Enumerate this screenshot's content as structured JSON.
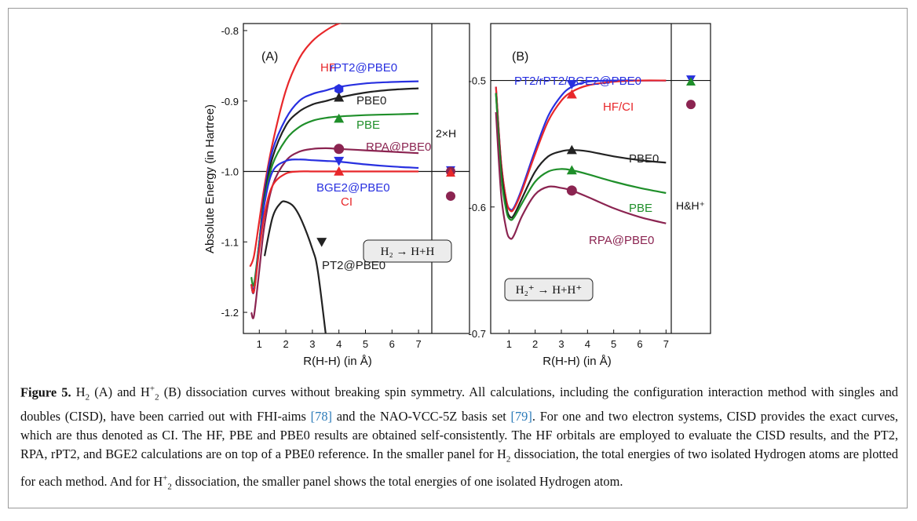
{
  "chart_data": [
    {
      "panel_label": "(A)",
      "type": "line",
      "xlabel": "R(H-H) (in Å)",
      "ylabel": "Absolute Energy (in Hartree)",
      "xlim": [
        0.4,
        7.5
      ],
      "ylim": [
        -1.23,
        -0.79
      ],
      "xticks": [
        "1",
        "2",
        "3",
        "4",
        "5",
        "6",
        "7"
      ],
      "yticks": [
        "-1.2",
        "-1.1",
        "-1.0",
        "-0.9",
        "-0.8"
      ],
      "side_label": "2×H",
      "reaction_label": "H₂ → H+H",
      "reference_line": -1.0,
      "series": [
        {
          "name": "HF",
          "color": "#e8272a",
          "x": [
            0.65,
            0.8,
            1,
            1.2,
            1.5,
            2,
            2.5,
            3,
            3.5,
            4,
            4.5
          ],
          "y": [
            -1.135,
            -1.12,
            -1.07,
            -1.02,
            -0.96,
            -0.885,
            -0.84,
            -0.815,
            -0.8,
            -0.79,
            -0.785
          ],
          "marker_x": null
        },
        {
          "name": "rPT2@PBE0",
          "color": "#2830e0",
          "x": [
            0.7,
            0.8,
            1,
            1.2,
            1.5,
            2,
            2.5,
            3,
            3.5,
            4,
            5,
            6,
            7
          ],
          "y": [
            -1.16,
            -1.165,
            -1.1,
            -1.03,
            -0.97,
            -0.925,
            -0.9,
            -0.89,
            -0.885,
            -0.88,
            -0.875,
            -0.873,
            -0.872
          ],
          "marker_x": 4.0,
          "marker_y": -0.883,
          "marker": "hexagon"
        },
        {
          "name": "PBE0",
          "color": "#222222",
          "x": [
            0.7,
            0.8,
            1,
            1.2,
            1.5,
            2,
            2.5,
            3,
            3.5,
            4,
            5,
            6,
            7
          ],
          "y": [
            -1.16,
            -1.17,
            -1.1,
            -1.035,
            -0.98,
            -0.935,
            -0.915,
            -0.905,
            -0.9,
            -0.895,
            -0.888,
            -0.884,
            -0.882
          ],
          "marker_x": 4.0,
          "marker_y": -0.895,
          "marker": "triangle-up"
        },
        {
          "name": "PBE",
          "color": "#1f8f2a",
          "x": [
            0.7,
            0.8,
            1,
            1.2,
            1.5,
            2,
            2.5,
            3,
            3.5,
            4,
            5,
            6,
            7
          ],
          "y": [
            -1.15,
            -1.16,
            -1.1,
            -1.04,
            -0.99,
            -0.955,
            -0.937,
            -0.928,
            -0.924,
            -0.922,
            -0.92,
            -0.919,
            -0.918
          ],
          "marker_x": 4.0,
          "marker_y": -0.925,
          "marker": "triangle-up"
        },
        {
          "name": "RPA@PBE0",
          "color": "#8b2451",
          "x": [
            0.7,
            0.8,
            1,
            1.2,
            1.5,
            2,
            2.5,
            3,
            3.5,
            4,
            5,
            6,
            7
          ],
          "y": [
            -1.2,
            -1.205,
            -1.14,
            -1.075,
            -1.02,
            -0.985,
            -0.972,
            -0.968,
            -0.967,
            -0.968,
            -0.97,
            -0.972,
            -0.974
          ],
          "marker_x": 4.0,
          "marker_y": -0.968,
          "marker": "circle"
        },
        {
          "name": "BGE2@PBE0",
          "color": "#2830e0",
          "x": [
            0.7,
            0.8,
            1,
            1.2,
            1.5,
            2,
            2.5,
            3,
            3.5,
            4,
            5,
            6,
            7
          ],
          "y": [
            -1.16,
            -1.17,
            -1.105,
            -1.045,
            -1.0,
            -0.985,
            -0.983,
            -0.984,
            -0.985,
            -0.986,
            -0.99,
            -0.993,
            -0.995
          ],
          "marker_x": 4.0,
          "marker_y": -0.985,
          "marker": "triangle-down"
        },
        {
          "name": "CI",
          "color": "#e8272a",
          "x": [
            0.7,
            0.8,
            1,
            1.2,
            1.5,
            2,
            2.5,
            3,
            3.5,
            4,
            5,
            6,
            7
          ],
          "y": [
            -1.16,
            -1.17,
            -1.11,
            -1.06,
            -1.02,
            -1.003,
            -1.0,
            -1.0,
            -1.0,
            -1.0,
            -1.0,
            -1.0,
            -1.0
          ],
          "marker_x": 4.0,
          "marker_y": -1.0,
          "marker": "triangle-up"
        },
        {
          "name": "PT2@PBE0",
          "color": "#222222",
          "x": [
            1.2,
            1.5,
            1.8,
            2.0,
            2.3,
            2.6,
            3.0,
            3.2,
            3.5
          ],
          "y": [
            -1.12,
            -1.065,
            -1.045,
            -1.043,
            -1.05,
            -1.07,
            -1.11,
            -1.14,
            -1.23
          ],
          "marker_x": 3.35,
          "marker_y": -1.1,
          "marker": "triangle-down"
        }
      ],
      "side_markers": [
        {
          "color": "#2830e0",
          "y": -0.998,
          "marker": "triangle-down"
        },
        {
          "color": "#8b2451",
          "y": -1.0,
          "marker": "circle"
        },
        {
          "color": "#e8272a",
          "y": -1.002,
          "marker": "triangle-up"
        },
        {
          "color": "#8b2451",
          "y": -1.035,
          "marker": "circle"
        }
      ]
    },
    {
      "panel_label": "(B)",
      "type": "line",
      "xlabel": "R(H-H) (in Å)",
      "ylabel": "",
      "xlim": [
        0.3,
        7.2
      ],
      "ylim": [
        -0.7,
        -0.455
      ],
      "xticks": [
        "1",
        "2",
        "3",
        "4",
        "5",
        "6",
        "7"
      ],
      "yticks": [
        "-0.7",
        "-0.6",
        "-0.5"
      ],
      "side_label": "H&H⁺",
      "reaction_label": "H₂⁺ → H+H⁺",
      "reference_line": -0.5,
      "series": [
        {
          "name": "PT2/rPT2/BGE2@PBE0",
          "color": "#2830e0",
          "x": [
            0.5,
            0.7,
            0.9,
            1.05,
            1.2,
            1.5,
            2,
            2.5,
            3,
            3.4,
            4,
            5,
            6,
            7
          ],
          "y": [
            -0.505,
            -0.565,
            -0.595,
            -0.602,
            -0.6,
            -0.585,
            -0.555,
            -0.528,
            -0.512,
            -0.505,
            -0.501,
            -0.5,
            -0.5,
            -0.5
          ],
          "marker_x": 3.4,
          "marker_y": -0.503,
          "marker": "triangle-down"
        },
        {
          "name": "HF/CI",
          "color": "#e8272a",
          "x": [
            0.5,
            0.7,
            0.9,
            1.05,
            1.2,
            1.5,
            2,
            2.5,
            3,
            3.4,
            4,
            5,
            6,
            7
          ],
          "y": [
            -0.505,
            -0.565,
            -0.595,
            -0.603,
            -0.601,
            -0.587,
            -0.558,
            -0.532,
            -0.516,
            -0.509,
            -0.504,
            -0.501,
            -0.5,
            -0.5
          ],
          "marker_x": 3.4,
          "marker_y": -0.511,
          "marker": "triangle-up"
        },
        {
          "name": "PBE0",
          "color": "#222222",
          "x": [
            0.5,
            0.7,
            0.9,
            1.05,
            1.2,
            1.5,
            2,
            2.5,
            3,
            3.4,
            4,
            5,
            6,
            7
          ],
          "y": [
            -0.51,
            -0.57,
            -0.6,
            -0.608,
            -0.606,
            -0.593,
            -0.572,
            -0.56,
            -0.556,
            -0.555,
            -0.556,
            -0.56,
            -0.563,
            -0.565
          ],
          "marker_x": 3.4,
          "marker_y": -0.555,
          "marker": "triangle-up"
        },
        {
          "name": "PBE",
          "color": "#1f8f2a",
          "x": [
            0.5,
            0.7,
            0.9,
            1.05,
            1.2,
            1.5,
            2,
            2.5,
            3,
            3.4,
            4,
            5,
            6,
            7
          ],
          "y": [
            -0.51,
            -0.575,
            -0.603,
            -0.61,
            -0.608,
            -0.597,
            -0.58,
            -0.572,
            -0.57,
            -0.571,
            -0.574,
            -0.58,
            -0.585,
            -0.589
          ],
          "marker_x": 3.4,
          "marker_y": -0.571,
          "marker": "triangle-up"
        },
        {
          "name": "RPA@PBE0",
          "color": "#8b2451",
          "x": [
            0.5,
            0.7,
            0.9,
            1.05,
            1.2,
            1.5,
            2,
            2.5,
            3,
            3.4,
            4,
            5,
            6,
            7
          ],
          "y": [
            -0.525,
            -0.59,
            -0.618,
            -0.625,
            -0.622,
            -0.607,
            -0.59,
            -0.584,
            -0.585,
            -0.587,
            -0.592,
            -0.601,
            -0.608,
            -0.613
          ],
          "marker_x": 3.4,
          "marker_y": -0.587,
          "marker": "circle"
        }
      ],
      "side_markers": [
        {
          "color": "#2830e0",
          "y": -0.499,
          "marker": "triangle-down"
        },
        {
          "color": "#1f8f2a",
          "y": -0.501,
          "marker": "triangle-up"
        },
        {
          "color": "#8b2451",
          "y": -0.519,
          "marker": "circle"
        }
      ]
    }
  ],
  "caption": {
    "figure_label": "Figure 5.",
    "parts": [
      {
        "t": " H",
        "k": "txt"
      },
      {
        "t": "2",
        "k": "sub"
      },
      {
        "t": " (A) and H",
        "k": "txt"
      },
      {
        "t": "+",
        "k": "sup"
      },
      {
        "t": "2",
        "k": "sub"
      },
      {
        "t": " (B) dissociation curves without breaking spin symmetry. All calculations, including the configuration interaction method with singles and doubles (CISD), have been carried out with FHI-aims ",
        "k": "txt"
      },
      {
        "t": "[78]",
        "k": "ref"
      },
      {
        "t": " and the NAO-VCC-5Z basis set ",
        "k": "txt"
      },
      {
        "t": "[79]",
        "k": "ref"
      },
      {
        "t": ". For one and two electron systems, CISD provides the exact curves, which are thus denoted as CI. The HF, PBE and PBE0 results are obtained self-consistently. The HF orbitals are employed to evaluate the CISD results, and the PT2, RPA, rPT2, and BGE2 calculations are on top of a PBE0 reference. In the smaller panel for H",
        "k": "txt"
      },
      {
        "t": "2",
        "k": "sub"
      },
      {
        "t": " dissociation, the total energies of two isolated Hydrogen atoms are plotted for each method. And for H",
        "k": "txt"
      },
      {
        "t": "+",
        "k": "sup"
      },
      {
        "t": "2",
        "k": "sub"
      },
      {
        "t": " dissociation, the smaller panel shows the total energies of one isolated Hydrogen atom.",
        "k": "txt"
      }
    ]
  }
}
